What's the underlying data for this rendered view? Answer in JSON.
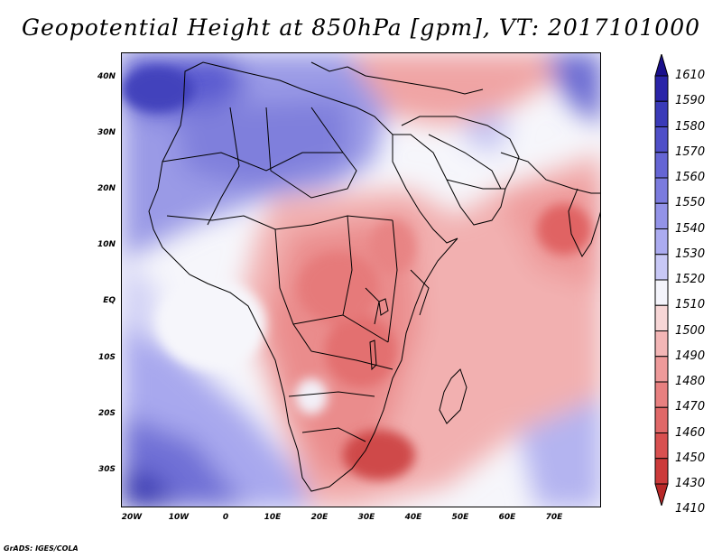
{
  "title": "Geopotential Height at 850hPa [gpm], VT: 2017101000",
  "credit": "GrADS: IGES/COLA",
  "map": {
    "variable": "Geopotential Height at 850hPa",
    "units": "gpm",
    "valid_time": "2017101000",
    "lon_range": [
      -22,
      80
    ],
    "lat_range": [
      -37,
      44
    ],
    "lat_labels": [
      "40N",
      "30N",
      "20N",
      "10N",
      "EQ",
      "10S",
      "20S",
      "30S"
    ],
    "lon_labels": [
      "20W",
      "10W",
      "0",
      "10E",
      "20E",
      "30E",
      "40E",
      "50E",
      "60E",
      "70E"
    ]
  },
  "colorbar": {
    "levels": [
      "1610",
      "1590",
      "1580",
      "1570",
      "1560",
      "1550",
      "1540",
      "1530",
      "1520",
      "1510",
      "1500",
      "1490",
      "1480",
      "1470",
      "1460",
      "1450",
      "1430",
      "1410"
    ],
    "colors": [
      "#1a0f8c",
      "#2a24a8",
      "#3a3ab8",
      "#4f4fc8",
      "#6565d4",
      "#7b7bde",
      "#9393e8",
      "#ababf0",
      "#c8c8f6",
      "#f4f4fb",
      "#f7d6d6",
      "#f3b6b6",
      "#ee9a9a",
      "#e88080",
      "#e06868",
      "#d85050",
      "#cc3a3a",
      "#b82828"
    ]
  }
}
